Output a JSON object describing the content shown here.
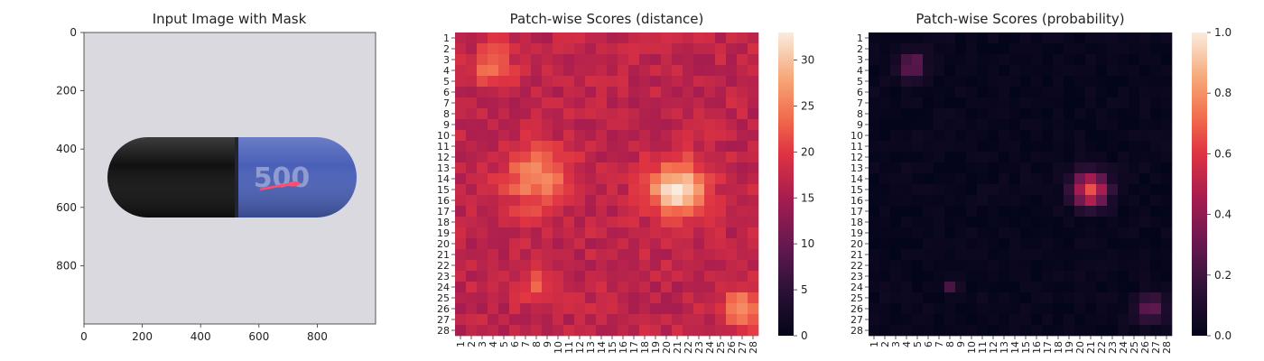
{
  "chart_data": [
    {
      "type": "image",
      "title": "Input Image with Mask",
      "x_ticks": [
        0,
        200,
        400,
        600,
        800
      ],
      "y_ticks": [
        0,
        200,
        400,
        600,
        800
      ],
      "xlim": [
        0,
        1000
      ],
      "ylim": [
        0,
        1000
      ],
      "image_description": "capsule pill, black and blue halves, blue half printed 500, red anomaly mask on blue half",
      "capsule": {
        "left_color": "#111111",
        "right_color": "#4a60b8",
        "print_text": "500"
      },
      "mask_color": "#ff4d6d",
      "background_color": "#d9d9df"
    },
    {
      "type": "heatmap",
      "title": "Patch-wise Scores (distance)",
      "grid_size": 28,
      "row_labels": [
        "1",
        "2",
        "3",
        "4",
        "5",
        "6",
        "7",
        "8",
        "9",
        "10",
        "11",
        "12",
        "13",
        "14",
        "15",
        "16",
        "17",
        "18",
        "19",
        "20",
        "21",
        "22",
        "23",
        "24",
        "25",
        "26",
        "27",
        "28"
      ],
      "col_labels": [
        "1",
        "2",
        "3",
        "4",
        "5",
        "6",
        "7",
        "8",
        "9",
        "10",
        "11",
        "12",
        "13",
        "14",
        "15",
        "16",
        "17",
        "18",
        "19",
        "20",
        "21",
        "22",
        "23",
        "24",
        "25",
        "26",
        "27",
        "28"
      ],
      "colorbar_ticks": [
        0,
        5,
        10,
        15,
        20,
        25,
        30
      ],
      "vmin": 0,
      "vmax": 33,
      "colormap": "rocket",
      "baseline": 17,
      "hotspots": [
        {
          "row": 15,
          "col": 21,
          "peak": 32,
          "sigma": 1.8
        },
        {
          "row": 14,
          "col": 8,
          "peak": 26,
          "sigma": 2.0
        },
        {
          "row": 3.5,
          "col": 4,
          "peak": 25,
          "sigma": 1.2
        },
        {
          "row": 26,
          "col": 27,
          "peak": 26,
          "sigma": 1.3
        },
        {
          "row": 24,
          "col": 8,
          "peak": 22,
          "sigma": 1.0
        }
      ]
    },
    {
      "type": "heatmap",
      "title": "Patch-wise Scores (probability)",
      "grid_size": 28,
      "row_labels": [
        "1",
        "2",
        "3",
        "4",
        "5",
        "6",
        "7",
        "8",
        "9",
        "10",
        "11",
        "12",
        "13",
        "14",
        "15",
        "16",
        "17",
        "18",
        "19",
        "20",
        "21",
        "22",
        "23",
        "24",
        "25",
        "26",
        "27",
        "28"
      ],
      "col_labels": [
        "1",
        "2",
        "3",
        "4",
        "5",
        "6",
        "7",
        "8",
        "9",
        "10",
        "11",
        "12",
        "13",
        "14",
        "15",
        "16",
        "17",
        "18",
        "19",
        "20",
        "21",
        "22",
        "23",
        "24",
        "25",
        "26",
        "27",
        "28"
      ],
      "colorbar_ticks": [
        "0.0",
        "0.2",
        "0.4",
        "0.6",
        "0.8",
        "1.0"
      ],
      "vmin": 0,
      "vmax": 1,
      "colormap": "rocket",
      "baseline": 0.02,
      "hotspots": [
        {
          "row": 15,
          "col": 21,
          "peak": 0.68,
          "sigma": 1.1
        },
        {
          "row": 3.5,
          "col": 4.5,
          "peak": 0.32,
          "sigma": 0.9
        },
        {
          "row": 26,
          "col": 26.5,
          "peak": 0.32,
          "sigma": 0.9
        },
        {
          "row": 24,
          "col": 8,
          "peak": 0.2,
          "sigma": 0.5
        }
      ]
    }
  ]
}
